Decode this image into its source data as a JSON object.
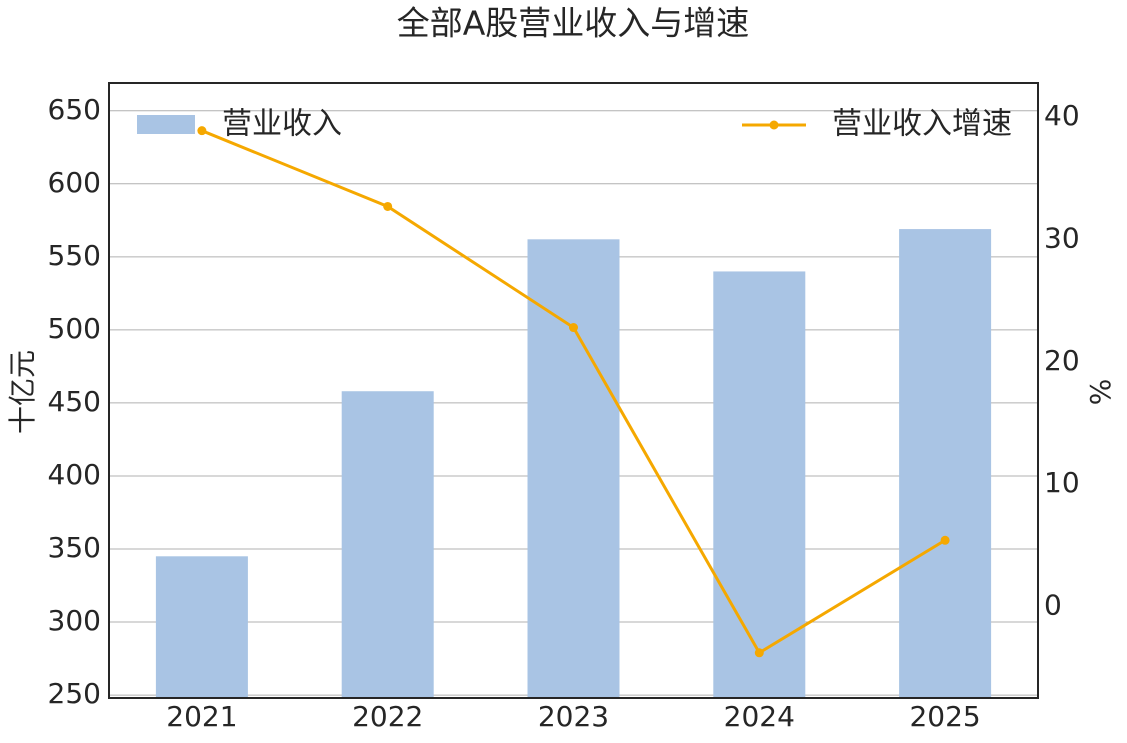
{
  "chart_data": {
    "type": "bar-line",
    "title": "全部A股营业收入与增速",
    "categories": [
      "2021",
      "2022",
      "2023",
      "2024",
      "2025"
    ],
    "series": [
      {
        "name": "营业收入",
        "type": "bar",
        "color": "#a9c4e4",
        "values": [
          345,
          458,
          562,
          540,
          569
        ]
      },
      {
        "name": "营业收入增速",
        "type": "line",
        "axis": "y2",
        "color": "#f5a800",
        "values": [
          38.9,
          32.7,
          22.8,
          -3.8,
          5.4
        ]
      }
    ],
    "ylabel": "十亿元",
    "y2label": "%",
    "ylim": [
      248,
      669
    ],
    "yticks": [
      250,
      300,
      350,
      400,
      450,
      500,
      550,
      600,
      650
    ],
    "y2lim": [
      -7.5,
      42.8
    ],
    "y2ticks": [
      0,
      10,
      20,
      30,
      40
    ],
    "grid": true,
    "legend": [
      "upper left",
      "upper right"
    ]
  }
}
